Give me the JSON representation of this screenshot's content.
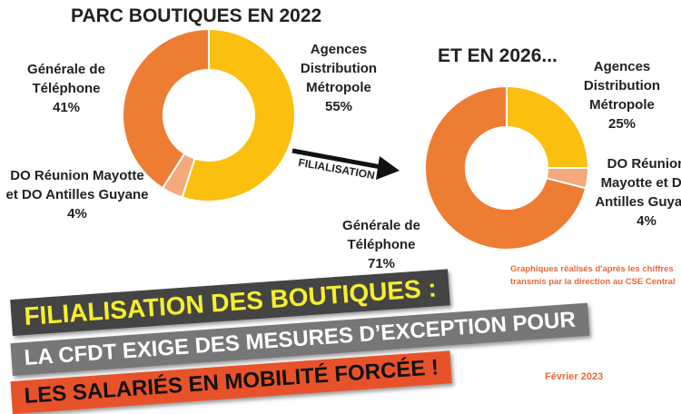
{
  "chart_data": [
    {
      "type": "pie",
      "title": "PARC BOUTIQUES EN 2022",
      "slices": [
        {
          "label": "Agences Distribution Métropole",
          "value": 55,
          "pct": "55%",
          "color": "#fbbf0f"
        },
        {
          "label": "DO Réunion Mayotte et DO Antilles Guyane",
          "value": 4,
          "pct": "4%",
          "color": "#f3a97d"
        },
        {
          "label": "Générale de Téléphone",
          "value": 41,
          "pct": "41%",
          "color": "#ee7d34"
        }
      ]
    },
    {
      "type": "pie",
      "title": "ET EN 2026...",
      "slices": [
        {
          "label": "Agences Distribution Métropole",
          "value": 25,
          "pct": "25%",
          "color": "#fbbf0f"
        },
        {
          "label": "DO Réunion Mayotte et DO Antilles Guyane",
          "value": 4,
          "pct": "4%",
          "color": "#f3a97d"
        },
        {
          "label": "Générale de Téléphone",
          "value": 71,
          "pct": "71%",
          "color": "#ee7d34"
        }
      ]
    }
  ],
  "arrow_label": "FILIALISATION",
  "labels": {
    "c1_agences": [
      "Agences",
      "Distribution",
      "Métropole",
      "55%"
    ],
    "c1_gt": [
      "Générale de",
      "Téléphone",
      "41%"
    ],
    "c1_do": [
      "DO Réunion Mayotte",
      "et DO Antilles Guyane",
      "4%"
    ],
    "c2_agences": [
      "Agences",
      "Distribution",
      "Métropole",
      "25%"
    ],
    "c2_do": [
      "DO Réunion",
      "Mayotte et DO",
      "Antilles Guyane",
      "4%"
    ],
    "c2_gt": [
      "Générale de",
      "Téléphone",
      "71%"
    ]
  },
  "note": [
    "Graphiques réalisés d'après les chiffres",
    "transmis par la direction au CSE Central"
  ],
  "date": "Février 2023",
  "banners": [
    "FILIALISATION DES BOUTIQUES :",
    "LA CFDT EXIGE DES MESURES D’EXCEPTION POUR",
    "LES SALARIÉS EN MOBILITÉ FORCÉE !"
  ]
}
